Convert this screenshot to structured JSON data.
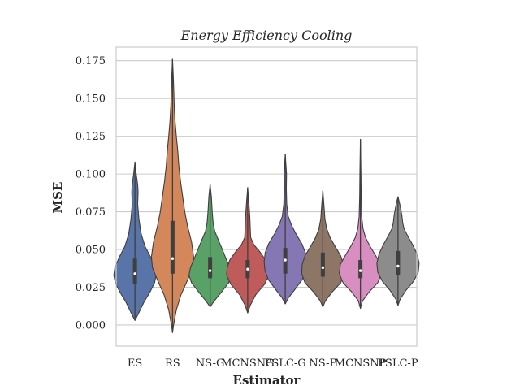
{
  "chart_data": {
    "type": "violin",
    "title": "Energy Efficiency Cooling",
    "xlabel": "Estimator",
    "ylabel": "MSE",
    "ylim": [
      -0.014,
      0.184
    ],
    "yticks": [
      "0.000",
      "0.025",
      "0.050",
      "0.075",
      "0.100",
      "0.125",
      "0.150",
      "0.175"
    ],
    "grid": true,
    "categories": [
      "ES",
      "RS",
      "NS-G",
      "MCNSNG",
      "PSLC-G",
      "NS-P",
      "MCNSNP",
      "PSLC-P"
    ],
    "colors": [
      "#5874a8",
      "#d3875a",
      "#5aa168",
      "#c05b5b",
      "#8577b3",
      "#8d7666",
      "#d88ec0",
      "#8c8c8c"
    ],
    "violins": [
      {
        "min": 0.003,
        "max": 0.108,
        "q1": 0.027,
        "median": 0.034,
        "q3": 0.044,
        "density": [
          [
            0.003,
            0.0
          ],
          [
            0.008,
            0.18
          ],
          [
            0.015,
            0.42
          ],
          [
            0.022,
            0.72
          ],
          [
            0.028,
            0.93
          ],
          [
            0.033,
            1.0
          ],
          [
            0.038,
            0.95
          ],
          [
            0.045,
            0.74
          ],
          [
            0.052,
            0.48
          ],
          [
            0.06,
            0.3
          ],
          [
            0.07,
            0.19
          ],
          [
            0.08,
            0.13
          ],
          [
            0.088,
            0.15
          ],
          [
            0.093,
            0.13
          ],
          [
            0.1,
            0.06
          ],
          [
            0.108,
            0.0
          ]
        ]
      },
      {
        "min": -0.005,
        "max": 0.176,
        "q1": 0.034,
        "median": 0.044,
        "q3": 0.069,
        "density": [
          [
            -0.005,
            0.0
          ],
          [
            0.0,
            0.05
          ],
          [
            0.01,
            0.18
          ],
          [
            0.02,
            0.4
          ],
          [
            0.03,
            0.72
          ],
          [
            0.038,
            0.95
          ],
          [
            0.045,
            1.0
          ],
          [
            0.055,
            0.9
          ],
          [
            0.065,
            0.72
          ],
          [
            0.075,
            0.58
          ],
          [
            0.085,
            0.48
          ],
          [
            0.095,
            0.38
          ],
          [
            0.105,
            0.3
          ],
          [
            0.115,
            0.25
          ],
          [
            0.125,
            0.18
          ],
          [
            0.135,
            0.12
          ],
          [
            0.145,
            0.08
          ],
          [
            0.155,
            0.06
          ],
          [
            0.165,
            0.035
          ],
          [
            0.176,
            0.0
          ]
        ]
      },
      {
        "min": 0.012,
        "max": 0.093,
        "q1": 0.031,
        "median": 0.036,
        "q3": 0.045,
        "density": [
          [
            0.012,
            0.0
          ],
          [
            0.016,
            0.2
          ],
          [
            0.022,
            0.55
          ],
          [
            0.028,
            0.88
          ],
          [
            0.033,
            1.0
          ],
          [
            0.038,
            0.93
          ],
          [
            0.044,
            0.75
          ],
          [
            0.05,
            0.58
          ],
          [
            0.056,
            0.4
          ],
          [
            0.062,
            0.22
          ],
          [
            0.068,
            0.14
          ],
          [
            0.075,
            0.1
          ],
          [
            0.085,
            0.06
          ],
          [
            0.093,
            0.0
          ]
        ]
      },
      {
        "min": 0.008,
        "max": 0.091,
        "q1": 0.031,
        "median": 0.037,
        "q3": 0.043,
        "density": [
          [
            0.008,
            0.0
          ],
          [
            0.013,
            0.12
          ],
          [
            0.02,
            0.38
          ],
          [
            0.027,
            0.8
          ],
          [
            0.033,
            1.0
          ],
          [
            0.038,
            0.97
          ],
          [
            0.043,
            0.85
          ],
          [
            0.048,
            0.6
          ],
          [
            0.053,
            0.3
          ],
          [
            0.058,
            0.14
          ],
          [
            0.065,
            0.12
          ],
          [
            0.072,
            0.1
          ],
          [
            0.08,
            0.06
          ],
          [
            0.091,
            0.0
          ]
        ]
      },
      {
        "min": 0.014,
        "max": 0.113,
        "q1": 0.034,
        "median": 0.043,
        "q3": 0.051,
        "density": [
          [
            0.014,
            0.0
          ],
          [
            0.018,
            0.15
          ],
          [
            0.024,
            0.48
          ],
          [
            0.03,
            0.8
          ],
          [
            0.036,
            0.96
          ],
          [
            0.042,
            1.0
          ],
          [
            0.048,
            0.95
          ],
          [
            0.054,
            0.78
          ],
          [
            0.06,
            0.52
          ],
          [
            0.066,
            0.3
          ],
          [
            0.072,
            0.14
          ],
          [
            0.08,
            0.07
          ],
          [
            0.09,
            0.05
          ],
          [
            0.1,
            0.06
          ],
          [
            0.113,
            0.0
          ]
        ]
      },
      {
        "min": 0.012,
        "max": 0.089,
        "q1": 0.032,
        "median": 0.038,
        "q3": 0.048,
        "density": [
          [
            0.012,
            0.0
          ],
          [
            0.016,
            0.12
          ],
          [
            0.022,
            0.45
          ],
          [
            0.028,
            0.85
          ],
          [
            0.034,
            1.0
          ],
          [
            0.04,
            0.98
          ],
          [
            0.046,
            0.84
          ],
          [
            0.052,
            0.58
          ],
          [
            0.058,
            0.34
          ],
          [
            0.064,
            0.18
          ],
          [
            0.07,
            0.1
          ],
          [
            0.078,
            0.06
          ],
          [
            0.089,
            0.0
          ]
        ]
      },
      {
        "min": 0.011,
        "max": 0.123,
        "q1": 0.031,
        "median": 0.036,
        "q3": 0.043,
        "density": [
          [
            0.011,
            0.0
          ],
          [
            0.016,
            0.1
          ],
          [
            0.022,
            0.42
          ],
          [
            0.028,
            0.82
          ],
          [
            0.034,
            1.0
          ],
          [
            0.04,
            0.95
          ],
          [
            0.046,
            0.72
          ],
          [
            0.052,
            0.46
          ],
          [
            0.058,
            0.24
          ],
          [
            0.064,
            0.12
          ],
          [
            0.072,
            0.06
          ],
          [
            0.085,
            0.035
          ],
          [
            0.1,
            0.025
          ],
          [
            0.123,
            0.0
          ]
        ]
      },
      {
        "min": 0.013,
        "max": 0.085,
        "q1": 0.033,
        "median": 0.039,
        "q3": 0.049,
        "density": [
          [
            0.013,
            0.0
          ],
          [
            0.017,
            0.1
          ],
          [
            0.023,
            0.38
          ],
          [
            0.029,
            0.74
          ],
          [
            0.035,
            0.96
          ],
          [
            0.041,
            1.0
          ],
          [
            0.047,
            0.9
          ],
          [
            0.053,
            0.7
          ],
          [
            0.059,
            0.46
          ],
          [
            0.064,
            0.28
          ],
          [
            0.068,
            0.22
          ],
          [
            0.073,
            0.18
          ],
          [
            0.079,
            0.1
          ],
          [
            0.085,
            0.0
          ]
        ]
      }
    ]
  }
}
